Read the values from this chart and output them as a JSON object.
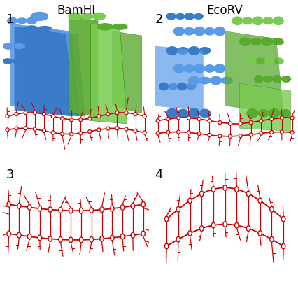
{
  "title_left": "BamHI",
  "title_right": "EcoRV",
  "label1": "1",
  "label2": "2",
  "label3": "3",
  "label4": "4",
  "bg_color": "#ffffff",
  "protein_blue": "#3a7bc8",
  "protein_blue2": "#5a9be8",
  "protein_green": "#5aaa30",
  "protein_green2": "#7acc50",
  "dna_red": "#cc0000",
  "text_color": "#000000",
  "title_fontsize": 12,
  "label_fontsize": 13,
  "figsize": [
    4.26,
    4.26
  ],
  "dpi": 100
}
